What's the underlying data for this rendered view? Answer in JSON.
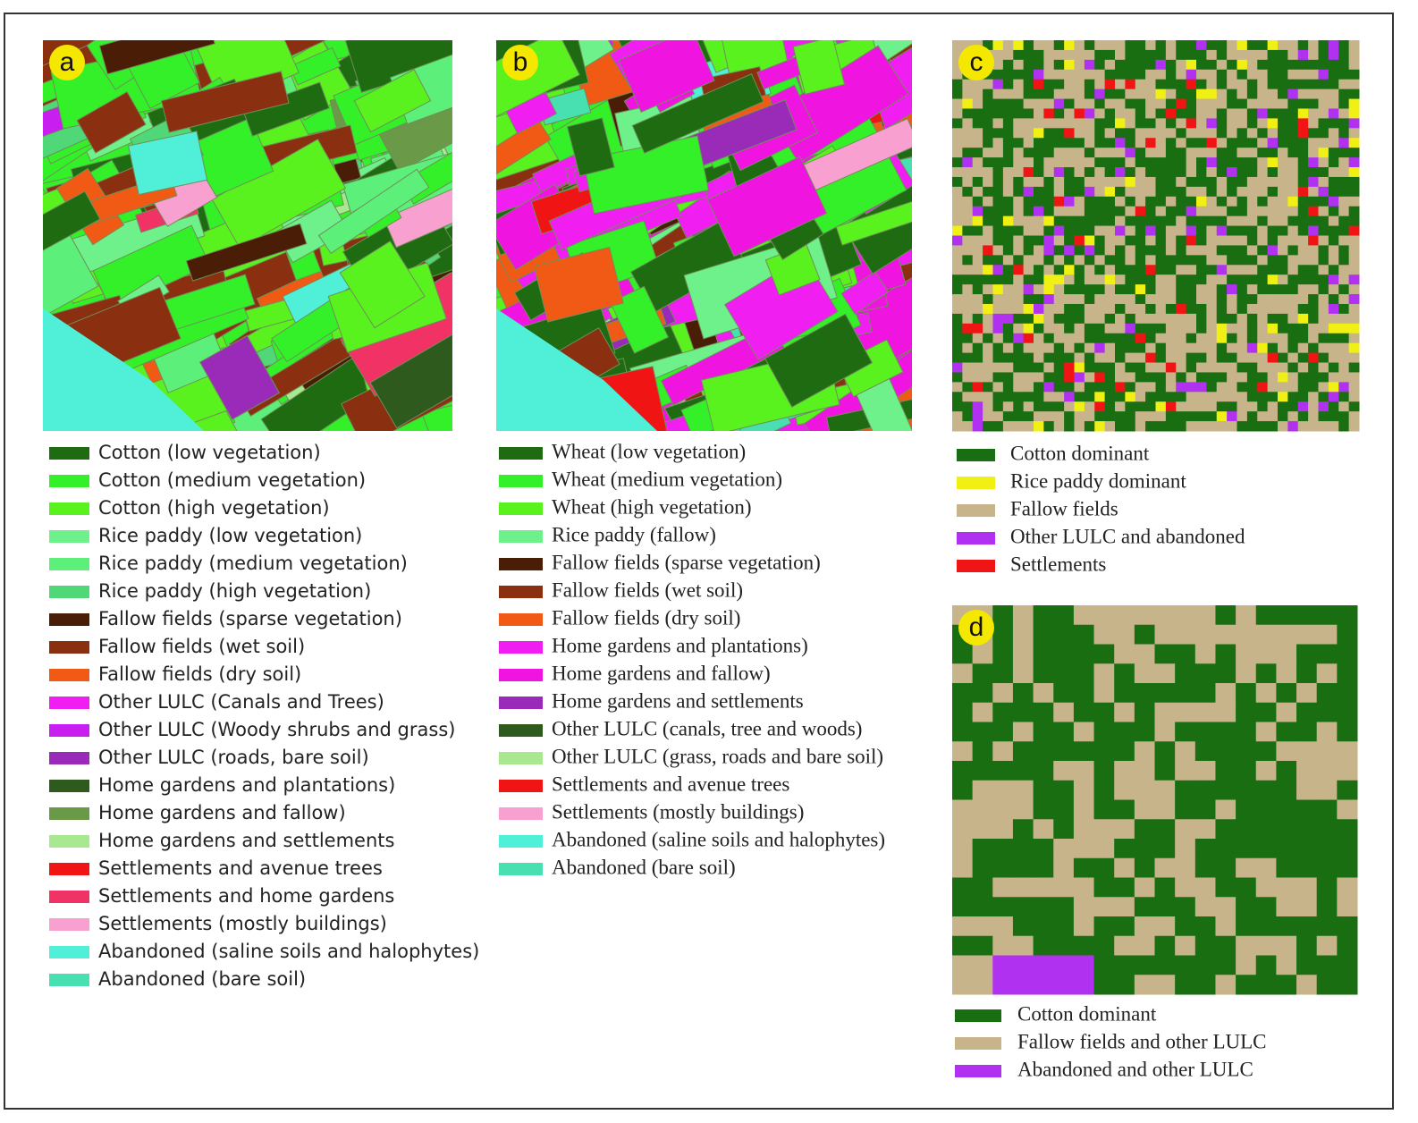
{
  "panels": [
    {
      "label": "a",
      "legend": [
        {
          "text": "Cotton (low vegetation)",
          "color": "#1e6b12"
        },
        {
          "text": "Cotton (medium vegetation)",
          "color": "#33f028"
        },
        {
          "text": "Cotton (high vegetation)",
          "color": "#5af21e"
        },
        {
          "text": "Rice paddy (low vegetation)",
          "color": "#6ef08a"
        },
        {
          "text": "Rice paddy (medium vegetation)",
          "color": "#5cf07a"
        },
        {
          "text": "Rice paddy (high vegetation)",
          "color": "#50d878"
        },
        {
          "text": "Fallow fields (sparse vegetation)",
          "color": "#4a1e06"
        },
        {
          "text": "Fallow fields (wet soil)",
          "color": "#8a3010"
        },
        {
          "text": "Fallow fields (dry soil)",
          "color": "#f05a14"
        },
        {
          "text": "Other LULC (Canals and Trees)",
          "color": "#f01ef0"
        },
        {
          "text": "Other LULC (Woody shrubs and grass)",
          "color": "#c81ef0"
        },
        {
          "text": "Other LULC (roads, bare soil)",
          "color": "#9a2ab8"
        },
        {
          "text": "Home gardens and plantations)",
          "color": "#2e5a1e"
        },
        {
          "text": "Home gardens and fallow)",
          "color": "#6a9a48"
        },
        {
          "text": "Home gardens and settlements",
          "color": "#a8e890"
        },
        {
          "text": "Settlements and avenue trees",
          "color": "#f01414"
        },
        {
          "text": "Settlements and home gardens",
          "color": "#f03264"
        },
        {
          "text": "Settlements (mostly buildings)",
          "color": "#f8a0d0"
        },
        {
          "text": "Abandoned (saline soils and halophytes)",
          "color": "#50f0d8"
        },
        {
          "text": "Abandoned (bare soil)",
          "color": "#48e0b0"
        }
      ]
    },
    {
      "label": "b",
      "legend": [
        {
          "text": "Wheat (low vegetation)",
          "color": "#1e6b12"
        },
        {
          "text": "Wheat (medium vegetation)",
          "color": "#33f028"
        },
        {
          "text": "Wheat (high vegetation)",
          "color": "#5af21e"
        },
        {
          "text": "Rice paddy (fallow)",
          "color": "#6ef08a"
        },
        {
          "text": "Fallow fields (sparse vegetation)",
          "color": "#4a1e06"
        },
        {
          "text": "Fallow fields (wet soil)",
          "color": "#8a3010"
        },
        {
          "text": "Fallow fields (dry soil)",
          "color": "#f05a14"
        },
        {
          "text": "Home gardens and plantations)",
          "color": "#f01ef0"
        },
        {
          "text": "Home gardens and fallow)",
          "color": "#f014e0"
        },
        {
          "text": "Home gardens and settlements",
          "color": "#9a2ab8"
        },
        {
          "text": "Other LULC (canals, tree and woods)",
          "color": "#2e5a1e"
        },
        {
          "text": "Other LULC (grass, roads and bare soil)",
          "color": "#a8e890"
        },
        {
          "text": "Settlements and avenue trees",
          "color": "#f01414"
        },
        {
          "text": "Settlements (mostly buildings)",
          "color": "#f8a0d0"
        },
        {
          "text": "Abandoned (saline soils and halophytes)",
          "color": "#50f0d8"
        },
        {
          "text": "Abandoned (bare soil)",
          "color": "#48e0b0"
        }
      ]
    },
    {
      "label": "c",
      "legend": [
        {
          "text": "Cotton dominant",
          "color": "#1a6e12"
        },
        {
          "text": "Rice paddy dominant",
          "color": "#f0f014"
        },
        {
          "text": "Fallow fields",
          "color": "#c8b48a"
        },
        {
          "text": "Other LULC and abandoned",
          "color": "#b032f0"
        },
        {
          "text": "Settlements",
          "color": "#f01414"
        }
      ]
    },
    {
      "label": "d",
      "legend": [
        {
          "text": "Cotton dominant",
          "color": "#1a6e12"
        },
        {
          "text": "Fallow fields and other LULC",
          "color": "#c8b48a"
        },
        {
          "text": "Abandoned and other LULC",
          "color": "#b032f0"
        }
      ]
    }
  ]
}
